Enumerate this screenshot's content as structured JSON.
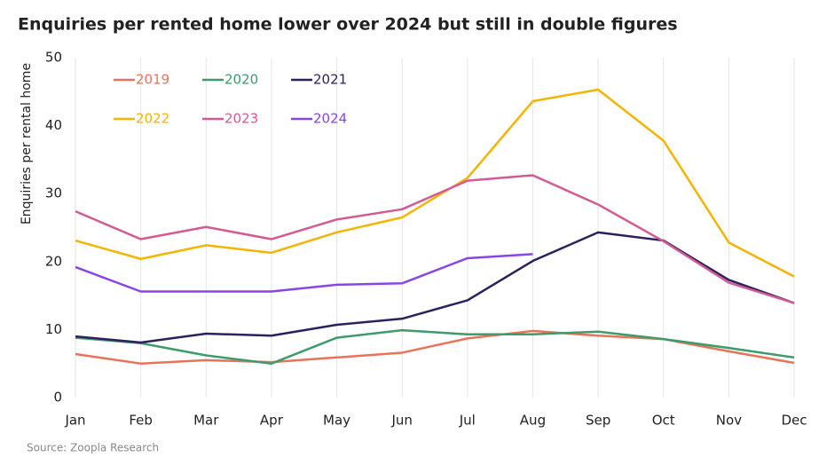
{
  "chart_data": {
    "type": "line",
    "title": "Enquiries per rented home lower over 2024 but still in double figures",
    "y_label": "Enquiries per rental home",
    "source": "Source: Zoopla Research",
    "categories": [
      "Jan",
      "Feb",
      "Mar",
      "Apr",
      "May",
      "Jun",
      "Jul",
      "Aug",
      "Sep",
      "Oct",
      "Nov",
      "Dec"
    ],
    "ylim": [
      0,
      50
    ],
    "yticks": [
      0,
      10,
      20,
      30,
      40,
      50
    ],
    "grid": true,
    "series": [
      {
        "name": "2019",
        "color": "#e8735a",
        "values": [
          6.4,
          5.0,
          5.5,
          5.2,
          5.9,
          6.6,
          8.7,
          9.8,
          9.1,
          8.6,
          6.8,
          5.1
        ]
      },
      {
        "name": "2020",
        "color": "#3e9b6b",
        "values": [
          8.8,
          8.0,
          6.2,
          5.0,
          8.8,
          9.9,
          9.3,
          9.3,
          9.7,
          8.6,
          7.3,
          5.9
        ]
      },
      {
        "name": "2021",
        "color": "#2e1f5e",
        "values": [
          9.0,
          8.1,
          9.4,
          9.1,
          10.7,
          11.6,
          14.3,
          20.1,
          24.3,
          23.1,
          17.3,
          13.9
        ]
      },
      {
        "name": "2022",
        "color": "#f5b400",
        "values": [
          23.1,
          20.4,
          22.4,
          21.3,
          24.3,
          26.5,
          32.3,
          43.6,
          45.3,
          37.8,
          22.8,
          17.8
        ]
      },
      {
        "name": "2023",
        "color": "#d45a94",
        "values": [
          27.4,
          23.3,
          25.1,
          23.3,
          26.2,
          27.7,
          31.9,
          32.7,
          28.4,
          23.0,
          16.9,
          13.9
        ]
      },
      {
        "name": "2024",
        "color": "#8a45e6",
        "values": [
          19.2,
          15.6,
          15.6,
          15.6,
          16.6,
          16.8,
          20.5,
          21.1,
          null,
          null,
          null,
          null
        ]
      }
    ]
  }
}
